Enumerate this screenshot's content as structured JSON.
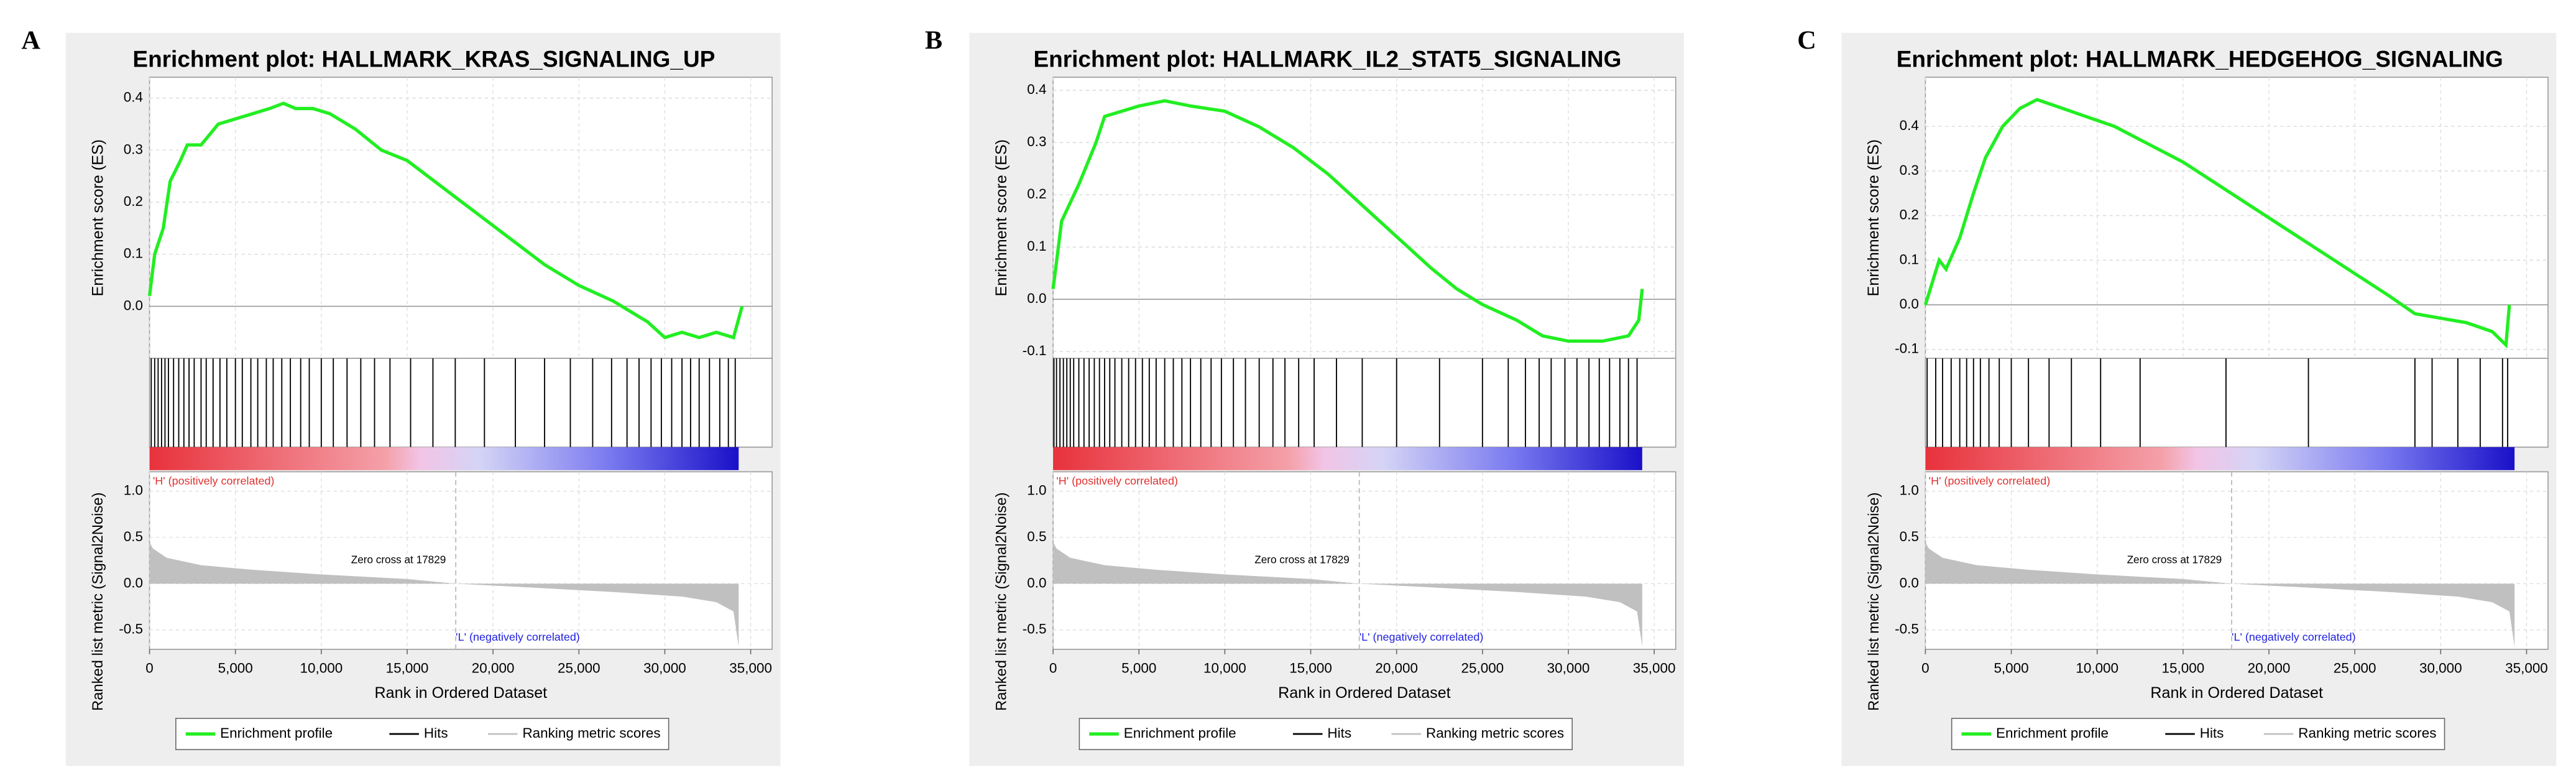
{
  "chart_data": [
    {
      "type": "line",
      "panel_label": "A",
      "title": "Enrichment plot: HALLMARK_KRAS_SIGNALING_UP",
      "ylabel": "Enrichment score (ES)",
      "y2label": "Ranked list metric (Signal2Noise)",
      "xlabel": "Rank in Ordered Dataset",
      "pos_label": "'H' (positively correlated)",
      "neg_label": "'L' (negatively correlated)",
      "zero_cross": {
        "value": 17829,
        "label": "Zero cross at 17829"
      },
      "grid": true,
      "xlim": [
        0,
        36250
      ],
      "xticks": [
        0,
        {
          "value": 5000,
          "label": "5,000"
        },
        {
          "value": 10000,
          "label": "10,000"
        },
        {
          "value": 15000,
          "label": "15,000"
        },
        {
          "value": 20000,
          "label": "20,000"
        },
        {
          "value": 25000,
          "label": "25,000"
        },
        {
          "value": 30000,
          "label": "30,000"
        },
        {
          "value": 35000,
          "label": "35,000"
        }
      ],
      "ylim": [
        -0.1,
        0.44
      ],
      "yticks": [
        {
          "value": 0,
          "label": "0.0"
        },
        0.1,
        0.2,
        0.3,
        0.4
      ],
      "y2lim": [
        -0.71,
        1.21
      ],
      "y2ticks": [
        -0.5,
        {
          "value": 0,
          "label": "0.0"
        },
        0.5,
        {
          "value": 1,
          "label": "1.0"
        }
      ],
      "series": [
        {
          "name": "Enrichment profile",
          "color": "#22ee22",
          "x": [
            0,
            300,
            800,
            1200,
            1800,
            2200,
            3000,
            4000,
            5000,
            6000,
            7000,
            7800,
            8500,
            9500,
            10500,
            12000,
            13500,
            15000,
            17000,
            19000,
            21000,
            23000,
            25000,
            27000,
            29000,
            30000,
            31000,
            32000,
            33000,
            34000,
            34500
          ],
          "values": [
            0.02,
            0.1,
            0.15,
            0.24,
            0.28,
            0.31,
            0.31,
            0.35,
            0.36,
            0.37,
            0.38,
            0.39,
            0.38,
            0.38,
            0.37,
            0.34,
            0.3,
            0.28,
            0.23,
            0.18,
            0.13,
            0.08,
            0.04,
            0.01,
            -0.03,
            -0.06,
            -0.05,
            -0.06,
            -0.05,
            -0.06,
            0.0
          ]
        },
        {
          "name": "Hits",
          "color": "#000000",
          "x": [
            100,
            300,
            500,
            700,
            900,
            1100,
            1400,
            1700,
            2000,
            2300,
            2600,
            3000,
            3300,
            3700,
            4100,
            4500,
            5000,
            5400,
            5900,
            6300,
            6800,
            7200,
            7700,
            8200,
            8800,
            9300,
            10000,
            10700,
            11500,
            12300,
            13100,
            14000,
            15200,
            16500,
            17800,
            19500,
            21300,
            23000,
            24500,
            25800,
            26900,
            27800,
            28500,
            29200,
            29800,
            30400,
            31000,
            31500,
            32000,
            32600,
            33200,
            33700,
            34100
          ]
        },
        {
          "name": "Ranking metric scores",
          "color": "#c0c0c0",
          "axis": "y2",
          "x": [
            0,
            200,
            1000,
            3000,
            6000,
            10000,
            15000,
            17829,
            22000,
            27000,
            31000,
            33000,
            34000,
            34300
          ],
          "values": [
            0.45,
            0.38,
            0.28,
            0.2,
            0.15,
            0.1,
            0.05,
            0,
            -0.04,
            -0.09,
            -0.14,
            -0.2,
            -0.3,
            -0.68
          ]
        }
      ]
    },
    {
      "type": "line",
      "panel_label": "B",
      "title": "Enrichment plot: HALLMARK_IL2_STAT5_SIGNALING",
      "ylabel": "Enrichment score (ES)",
      "y2label": "Ranked list metric (Signal2Noise)",
      "xlabel": "Rank in Ordered Dataset",
      "pos_label": "'H' (positively correlated)",
      "neg_label": "'L' (negatively correlated)",
      "zero_cross": {
        "value": 17829,
        "label": "Zero cross at 17829"
      },
      "grid": true,
      "xlim": [
        0,
        36250
      ],
      "xticks": [
        0,
        {
          "value": 5000,
          "label": "5,000"
        },
        {
          "value": 10000,
          "label": "10,000"
        },
        {
          "value": 15000,
          "label": "15,000"
        },
        {
          "value": 20000,
          "label": "20,000"
        },
        {
          "value": 25000,
          "label": "25,000"
        },
        {
          "value": 30000,
          "label": "30,000"
        },
        {
          "value": 35000,
          "label": "35,000"
        }
      ],
      "ylim": [
        -0.113,
        0.425
      ],
      "yticks": [
        -0.1,
        {
          "value": 0,
          "label": "0.0"
        },
        0.1,
        0.2,
        0.3,
        0.4
      ],
      "y2lim": [
        -0.71,
        1.21
      ],
      "y2ticks": [
        -0.5,
        {
          "value": 0,
          "label": "0.0"
        },
        0.5,
        {
          "value": 1,
          "label": "1.0"
        }
      ],
      "series": [
        {
          "name": "Enrichment profile",
          "color": "#22ee22",
          "x": [
            0,
            500,
            1500,
            2500,
            3000,
            4000,
            5000,
            6500,
            8000,
            10000,
            12000,
            14000,
            16000,
            18000,
            20000,
            22000,
            23500,
            25000,
            27000,
            28500,
            30000,
            32000,
            33500,
            34100,
            34300
          ],
          "values": [
            0.02,
            0.15,
            0.22,
            0.3,
            0.35,
            0.36,
            0.37,
            0.38,
            0.37,
            0.36,
            0.33,
            0.29,
            0.24,
            0.18,
            0.12,
            0.06,
            0.02,
            -0.01,
            -0.04,
            -0.07,
            -0.08,
            -0.08,
            -0.07,
            -0.04,
            0.02
          ]
        },
        {
          "name": "Hits",
          "color": "#000000",
          "x": [
            50,
            200,
            400,
            600,
            800,
            1000,
            1200,
            1500,
            1800,
            2100,
            2400,
            2700,
            3000,
            3300,
            3600,
            4000,
            4400,
            4800,
            5200,
            5600,
            6000,
            6500,
            7000,
            7500,
            8000,
            8600,
            9200,
            9800,
            10500,
            11200,
            12000,
            12800,
            13500,
            14300,
            15200,
            16500,
            18000,
            20000,
            22500,
            25000,
            26500,
            27500,
            28300,
            29000,
            29800,
            30500,
            31200,
            31800,
            32400,
            33000,
            33500,
            34000
          ]
        },
        {
          "name": "Ranking metric scores",
          "color": "#c0c0c0",
          "axis": "y2",
          "x": [
            0,
            200,
            1000,
            3000,
            6000,
            10000,
            15000,
            17829,
            22000,
            27000,
            31000,
            33000,
            34000,
            34300
          ],
          "values": [
            0.45,
            0.38,
            0.28,
            0.2,
            0.15,
            0.1,
            0.05,
            0,
            -0.04,
            -0.09,
            -0.14,
            -0.2,
            -0.3,
            -0.68
          ]
        }
      ]
    },
    {
      "type": "line",
      "panel_label": "C",
      "title": "Enrichment plot: HALLMARK_HEDGEHOG_SIGNALING",
      "ylabel": "Enrichment score (ES)",
      "y2label": "Ranked list metric (Signal2Noise)",
      "xlabel": "Rank in Ordered Dataset",
      "pos_label": "'H' (positively correlated)",
      "neg_label": "'L' (negatively correlated)",
      "zero_cross": {
        "value": 17829,
        "label": "Zero cross at 17829"
      },
      "grid": true,
      "xlim": [
        0,
        36250
      ],
      "xticks": [
        0,
        {
          "value": 5000,
          "label": "5,000"
        },
        {
          "value": 10000,
          "label": "10,000"
        },
        {
          "value": 15000,
          "label": "15,000"
        },
        {
          "value": 20000,
          "label": "20,000"
        },
        {
          "value": 25000,
          "label": "25,000"
        },
        {
          "value": 30000,
          "label": "30,000"
        },
        {
          "value": 35000,
          "label": "35,000"
        }
      ],
      "ylim": [
        -0.12,
        0.51
      ],
      "yticks": [
        -0.1,
        {
          "value": 0,
          "label": "0.0"
        },
        0.1,
        0.2,
        0.3,
        0.4
      ],
      "y2lim": [
        -0.71,
        1.21
      ],
      "y2ticks": [
        -0.5,
        {
          "value": 0,
          "label": "0.0"
        },
        0.5,
        {
          "value": 1,
          "label": "1.0"
        }
      ],
      "series": [
        {
          "name": "Enrichment profile",
          "color": "#22ee22",
          "x": [
            0,
            400,
            800,
            1200,
            2000,
            2800,
            3500,
            4500,
            5500,
            6500,
            8000,
            9500,
            11000,
            13000,
            15000,
            17000,
            19000,
            21000,
            23000,
            25000,
            27000,
            28500,
            30000,
            31500,
            33000,
            33800,
            34000
          ],
          "values": [
            0.0,
            0.05,
            0.1,
            0.08,
            0.15,
            0.25,
            0.33,
            0.4,
            0.44,
            0.46,
            0.44,
            0.42,
            0.4,
            0.36,
            0.32,
            0.27,
            0.22,
            0.17,
            0.12,
            0.07,
            0.02,
            -0.02,
            -0.03,
            -0.04,
            -0.06,
            -0.09,
            0.0
          ]
        },
        {
          "name": "Hits",
          "color": "#000000",
          "x": [
            100,
            600,
            1000,
            1500,
            2000,
            2400,
            2800,
            3200,
            3700,
            4300,
            5000,
            6000,
            7200,
            8500,
            10200,
            12500,
            17500,
            22300,
            28500,
            29500,
            31000,
            32300,
            33600,
            33900
          ]
        },
        {
          "name": "Ranking metric scores",
          "color": "#c0c0c0",
          "axis": "y2",
          "x": [
            0,
            200,
            1000,
            3000,
            6000,
            10000,
            15000,
            17829,
            22000,
            27000,
            31000,
            33000,
            34000,
            34300
          ],
          "values": [
            0.45,
            0.38,
            0.28,
            0.2,
            0.15,
            0.1,
            0.05,
            0,
            -0.04,
            -0.09,
            -0.14,
            -0.2,
            -0.3,
            -0.68
          ]
        }
      ]
    }
  ]
}
